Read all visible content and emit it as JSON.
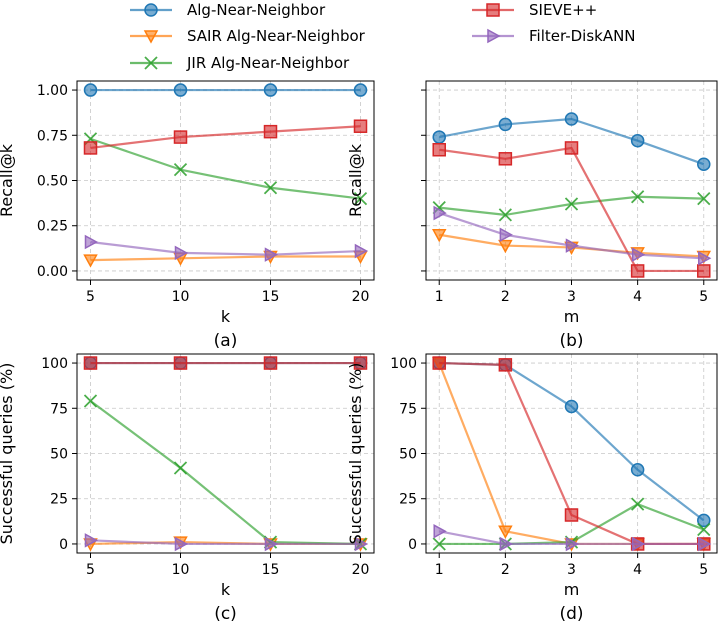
{
  "legend": [
    {
      "name": "Alg-Near-Neighbor",
      "color": "#1f77b4",
      "marker": "circle"
    },
    {
      "name": "SIEVE++",
      "color": "#d62728",
      "marker": "square"
    },
    {
      "name": "SAIR Alg-Near-Neighbor",
      "color": "#ff7f0e",
      "marker": "triangle-down"
    },
    {
      "name": "Filter-DiskANN",
      "color": "#9467bd",
      "marker": "triangle-right"
    },
    {
      "name": "JIR Alg-Near-Neighbor",
      "color": "#2ca02c",
      "marker": "x"
    }
  ],
  "chart_data": [
    {
      "id": "a",
      "caption": "(a)",
      "type": "line",
      "xlabel": "k",
      "ylabel": "Recall@k",
      "x": [
        5,
        10,
        15,
        20
      ],
      "xticks": [
        5,
        10,
        15,
        20
      ],
      "xlim": [
        4.25,
        20.75
      ],
      "ylim": [
        -0.05,
        1.05
      ],
      "yticks": [
        0,
        0.25,
        0.5,
        0.75,
        1.0
      ],
      "ytick_labels": [
        "0.00",
        "0.25",
        "0.50",
        "0.75",
        "1.00"
      ],
      "show_yticklabels": true,
      "series": [
        {
          "name": "Alg-Near-Neighbor",
          "values": [
            1.0,
            1.0,
            1.0,
            1.0
          ]
        },
        {
          "name": "SAIR Alg-Near-Neighbor",
          "values": [
            0.06,
            0.07,
            0.08,
            0.08
          ]
        },
        {
          "name": "JIR Alg-Near-Neighbor",
          "values": [
            0.73,
            0.56,
            0.46,
            0.4
          ]
        },
        {
          "name": "SIEVE++",
          "values": [
            0.68,
            0.74,
            0.77,
            0.8
          ]
        },
        {
          "name": "Filter-DiskANN",
          "values": [
            0.16,
            0.1,
            0.09,
            0.11
          ]
        }
      ]
    },
    {
      "id": "b",
      "caption": "(b)",
      "type": "line",
      "xlabel": "m",
      "ylabel": "Recall@k",
      "x": [
        1,
        2,
        3,
        4,
        5
      ],
      "xticks": [
        1,
        2,
        3,
        4,
        5
      ],
      "xlim": [
        0.8,
        5.2
      ],
      "ylim": [
        -0.05,
        1.05
      ],
      "yticks": [
        0,
        0.25,
        0.5,
        0.75,
        1.0
      ],
      "ytick_labels": [
        "",
        "",
        "",
        "",
        ""
      ],
      "show_yticklabels": false,
      "series": [
        {
          "name": "Alg-Near-Neighbor",
          "values": [
            0.74,
            0.81,
            0.84,
            0.72,
            0.59
          ]
        },
        {
          "name": "SAIR Alg-Near-Neighbor",
          "values": [
            0.2,
            0.14,
            0.13,
            0.1,
            0.08
          ]
        },
        {
          "name": "JIR Alg-Near-Neighbor",
          "values": [
            0.35,
            0.31,
            0.37,
            0.41,
            0.4
          ]
        },
        {
          "name": "SIEVE++",
          "values": [
            0.67,
            0.62,
            0.68,
            0.0,
            0.0
          ]
        },
        {
          "name": "Filter-DiskANN",
          "values": [
            0.32,
            0.2,
            0.14,
            0.09,
            0.07
          ]
        }
      ]
    },
    {
      "id": "c",
      "caption": "(c)",
      "type": "line",
      "xlabel": "k",
      "ylabel": "Successful queries (%)",
      "x": [
        5,
        10,
        15,
        20
      ],
      "xticks": [
        5,
        10,
        15,
        20
      ],
      "xlim": [
        4.25,
        20.75
      ],
      "ylim": [
        -5,
        105
      ],
      "yticks": [
        0,
        25,
        50,
        75,
        100
      ],
      "ytick_labels": [
        "0",
        "25",
        "50",
        "75",
        "100"
      ],
      "show_yticklabels": true,
      "series": [
        {
          "name": "Alg-Near-Neighbor",
          "values": [
            100,
            100,
            100,
            100
          ]
        },
        {
          "name": "SAIR Alg-Near-Neighbor",
          "values": [
            0,
            1,
            0,
            0
          ]
        },
        {
          "name": "JIR Alg-Near-Neighbor",
          "values": [
            79,
            42,
            1,
            0
          ]
        },
        {
          "name": "SIEVE++",
          "values": [
            100,
            100,
            100,
            100
          ]
        },
        {
          "name": "Filter-DiskANN",
          "values": [
            2,
            0,
            0,
            0
          ]
        }
      ]
    },
    {
      "id": "d",
      "caption": "(d)",
      "type": "line",
      "xlabel": "m",
      "ylabel": "Successful queries (%)",
      "x": [
        1,
        2,
        3,
        4,
        5
      ],
      "xticks": [
        1,
        2,
        3,
        4,
        5
      ],
      "xlim": [
        0.8,
        5.2
      ],
      "ylim": [
        -5,
        105
      ],
      "yticks": [
        0,
        25,
        50,
        75,
        100
      ],
      "ytick_labels": [
        "0",
        "25",
        "50",
        "75",
        "100"
      ],
      "show_yticklabels": true,
      "series": [
        {
          "name": "Alg-Near-Neighbor",
          "values": [
            100,
            99,
            76,
            41,
            13
          ]
        },
        {
          "name": "SAIR Alg-Near-Neighbor",
          "values": [
            100,
            7,
            0,
            0,
            0
          ]
        },
        {
          "name": "JIR Alg-Near-Neighbor",
          "values": [
            0,
            0,
            1,
            22,
            8
          ]
        },
        {
          "name": "SIEVE++",
          "values": [
            100,
            99,
            16,
            0,
            0
          ]
        },
        {
          "name": "Filter-DiskANN",
          "values": [
            7,
            0,
            0,
            0,
            0
          ]
        }
      ]
    }
  ]
}
